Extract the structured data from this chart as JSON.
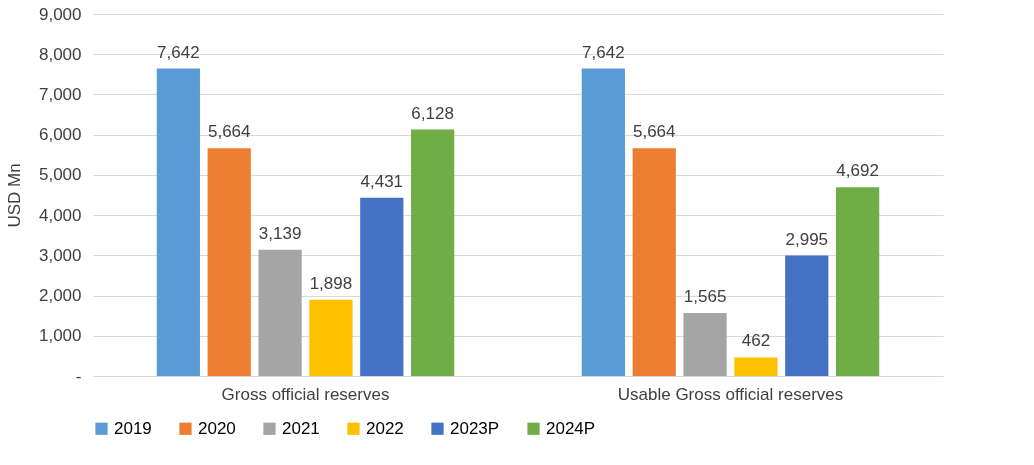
{
  "chart_data": {
    "type": "bar",
    "ylabel": "USD Mn",
    "categories": [
      "Gross official reserves",
      "Usable Gross official reserves"
    ],
    "series": [
      {
        "name": "2019",
        "color": "#5b9bd5",
        "values": [
          7642,
          7642
        ],
        "value_labels": [
          "7,642",
          "7,642"
        ]
      },
      {
        "name": "2020",
        "color": "#ed7d31",
        "values": [
          5664,
          5664
        ],
        "value_labels": [
          "5,664",
          "5,664"
        ]
      },
      {
        "name": "2021",
        "color": "#a5a5a5",
        "values": [
          3139,
          1565
        ],
        "value_labels": [
          "3,139",
          "1,565"
        ]
      },
      {
        "name": "2022",
        "color": "#ffc000",
        "values": [
          1898,
          462
        ],
        "value_labels": [
          "1,898",
          "462"
        ]
      },
      {
        "name": "2023P",
        "color": "#4472c4",
        "values": [
          4431,
          2995
        ],
        "value_labels": [
          "4,431",
          "2,995"
        ]
      },
      {
        "name": "2024P",
        "color": "#70ad47",
        "values": [
          6128,
          4692
        ],
        "value_labels": [
          "6,128",
          "4,692"
        ]
      }
    ],
    "ylim": [
      0,
      9000
    ],
    "yticks": [
      {
        "value": 0,
        "label": "-"
      },
      {
        "value": 1000,
        "label": "1,000"
      },
      {
        "value": 2000,
        "label": "2,000"
      },
      {
        "value": 3000,
        "label": "3,000"
      },
      {
        "value": 4000,
        "label": "4,000"
      },
      {
        "value": 5000,
        "label": "5,000"
      },
      {
        "value": 6000,
        "label": "6,000"
      },
      {
        "value": 7000,
        "label": "7,000"
      },
      {
        "value": 8000,
        "label": "8,000"
      },
      {
        "value": 9000,
        "label": "9,000"
      }
    ],
    "grid": "y",
    "legend": "bottom"
  }
}
